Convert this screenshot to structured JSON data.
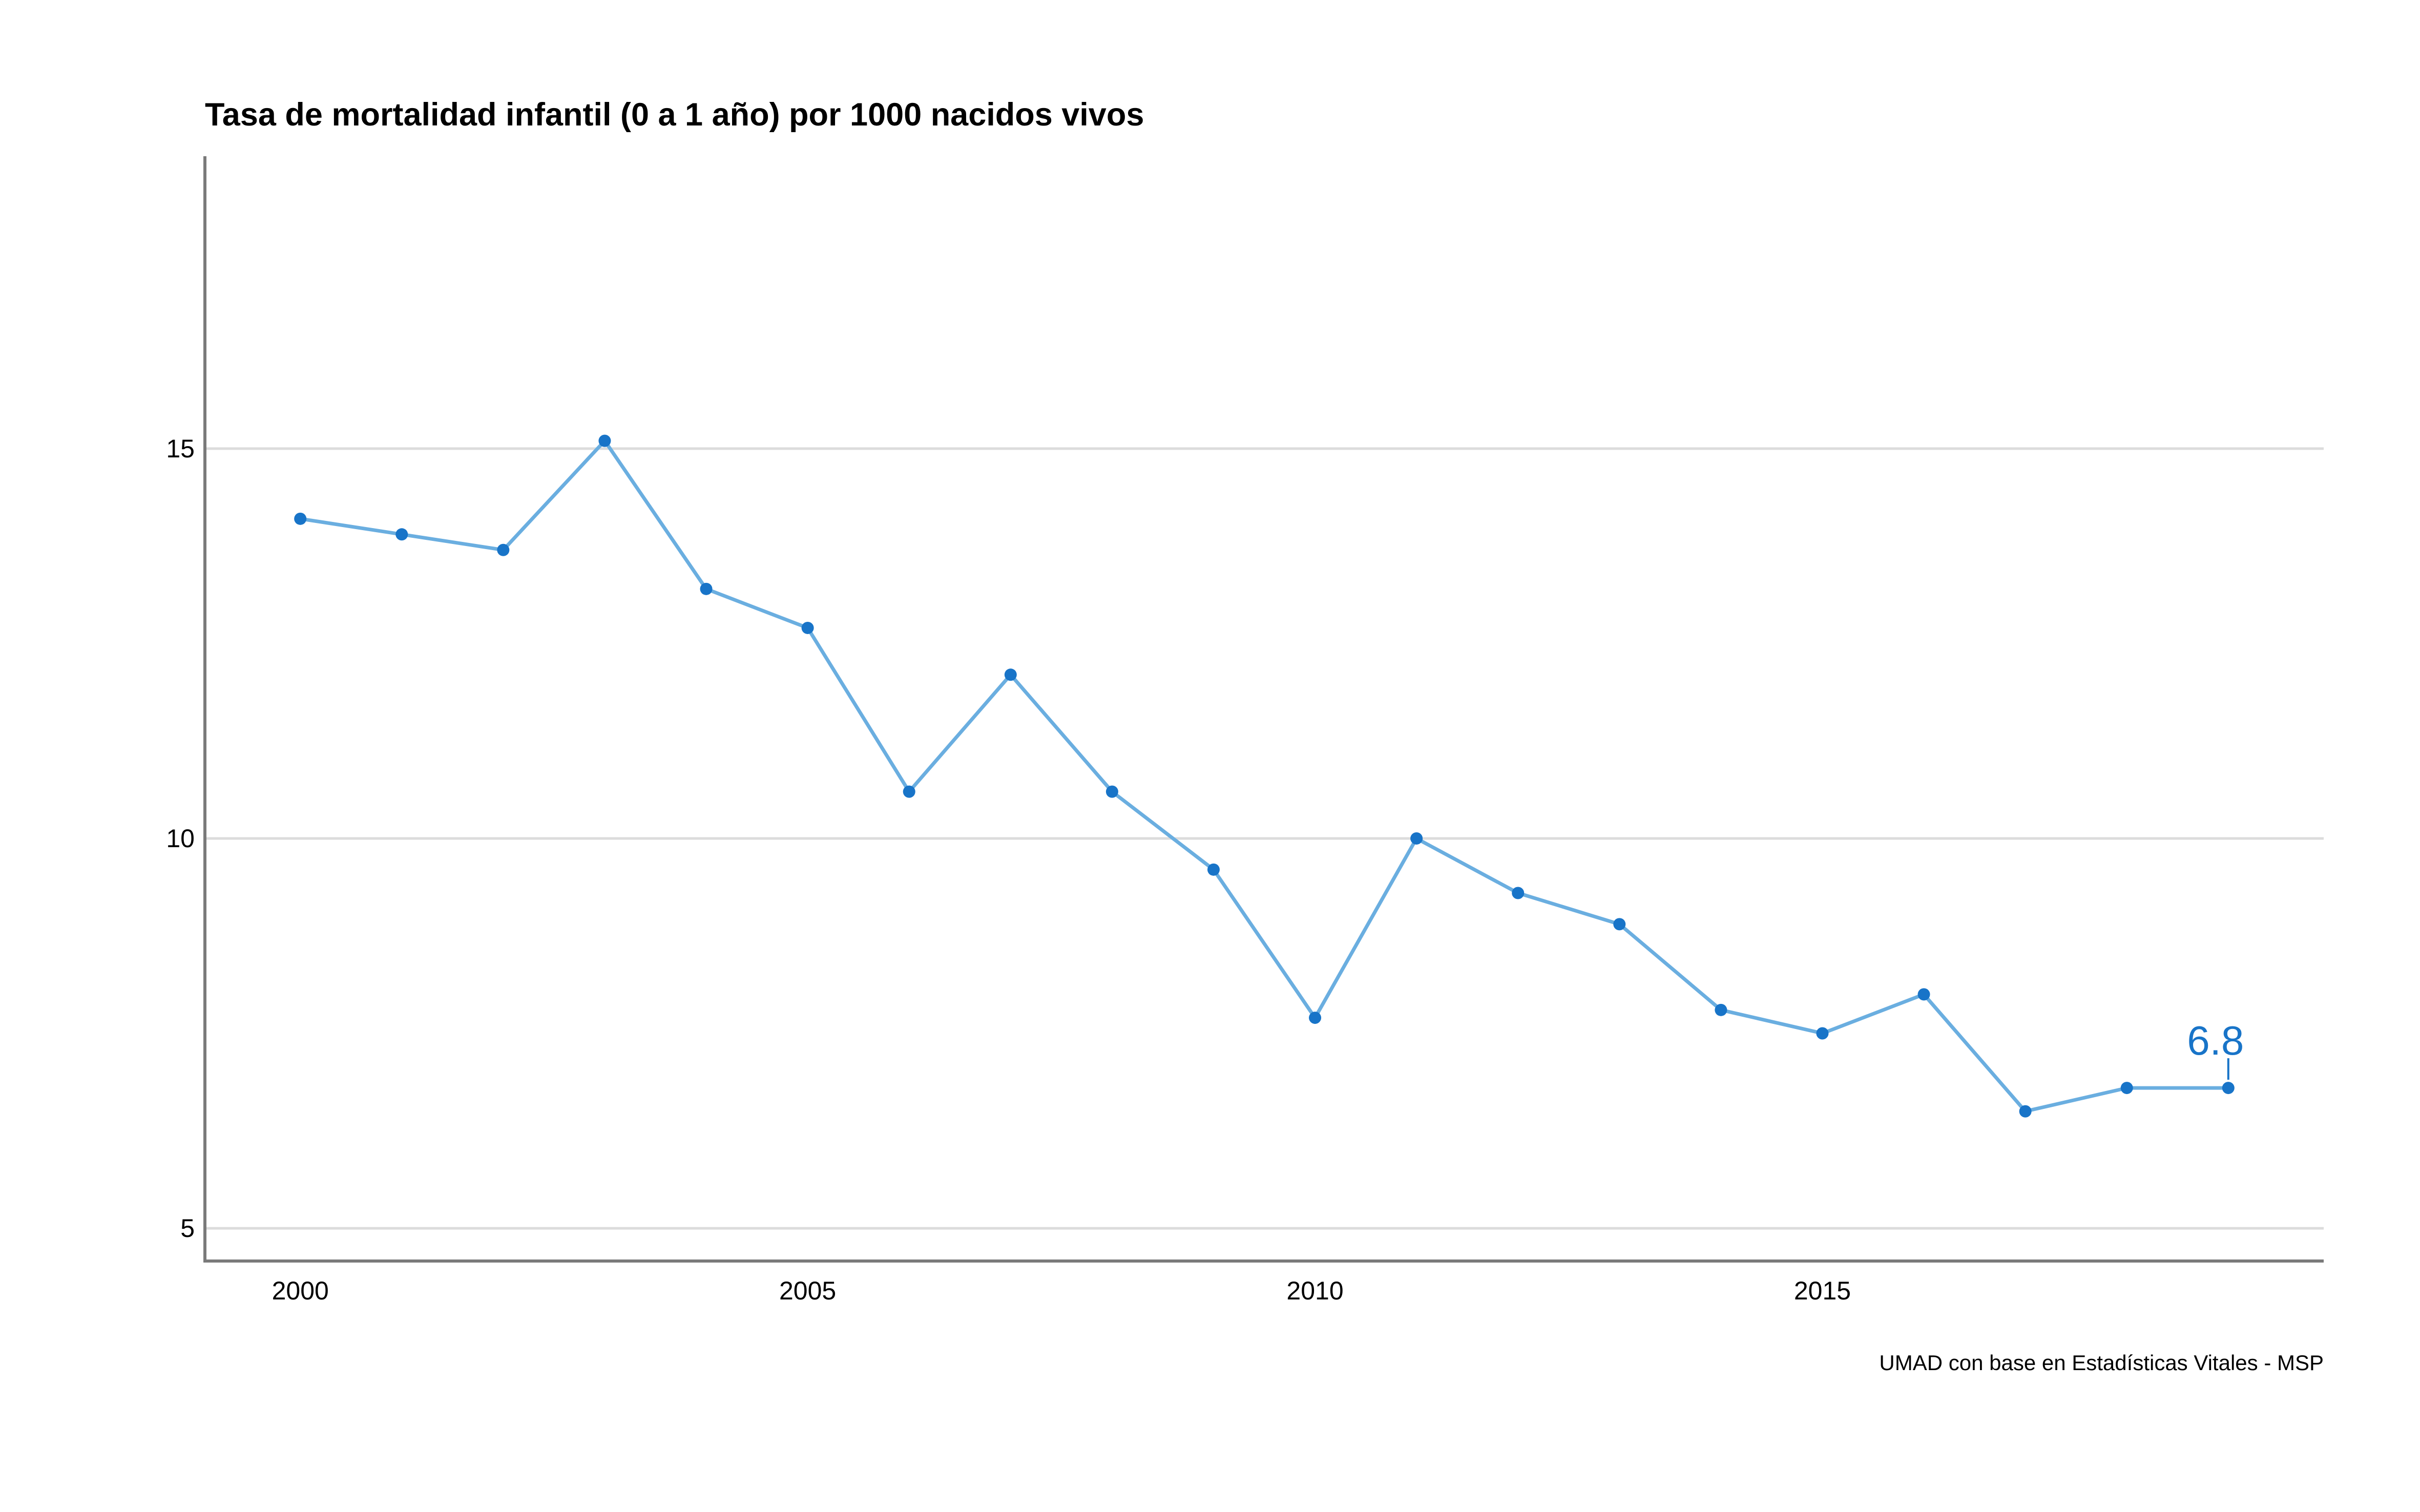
{
  "chart_data": {
    "type": "line",
    "title": "Tasa de mortalidad infantil (0 a 1 año) por 1000 nacidos vivos",
    "caption": "UMAD con base en Estadísticas Vitales - MSP",
    "xlabel": "",
    "ylabel": "",
    "x": [
      2000,
      2001,
      2002,
      2003,
      2004,
      2005,
      2006,
      2007,
      2008,
      2009,
      2010,
      2011,
      2012,
      2013,
      2014,
      2015,
      2016,
      2017,
      2018,
      2019
    ],
    "values": [
      14.1,
      13.9,
      13.7,
      15.1,
      13.2,
      12.7,
      10.6,
      12.1,
      10.6,
      9.6,
      7.7,
      10.0,
      9.3,
      8.9,
      7.8,
      7.5,
      8.0,
      6.5,
      6.8,
      6.8
    ],
    "x_ticks": [
      "2000",
      "2005",
      "2010",
      "2015"
    ],
    "y_ticks": [
      "5",
      "10",
      "15"
    ],
    "end_label": "6.8",
    "xlim": [
      1999.06,
      2019.94
    ],
    "ylim": [
      4.58,
      18.75
    ],
    "grid": "horizontal",
    "colors": {
      "line": "#6aaee0",
      "points": "#1874c8",
      "end_label": "#1874c8"
    }
  }
}
